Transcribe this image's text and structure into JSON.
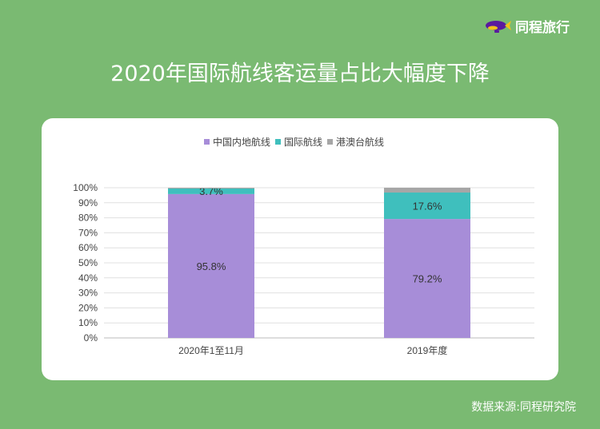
{
  "header": {
    "title": "2020年国际航线客运量占比大幅度下降",
    "brand": "同程旅行"
  },
  "footer": {
    "source": "数据来源:同程研究院"
  },
  "colors": {
    "background": "#7aba72",
    "series": [
      "#a78dd8",
      "#3fbfbd",
      "#a6a6a6"
    ]
  },
  "chart_data": {
    "type": "bar",
    "stacked": true,
    "categories": [
      "2020年1至11月",
      "2019年度"
    ],
    "series": [
      {
        "name": "中国内地航线",
        "values": [
          95.8,
          79.2
        ],
        "labels": [
          "95.8%",
          "79.2%"
        ]
      },
      {
        "name": "国际航线",
        "values": [
          3.7,
          17.6
        ],
        "labels": [
          "3.7%",
          "17.6%"
        ]
      },
      {
        "name": "港澳台航线",
        "values": [
          0.5,
          3.2
        ],
        "labels": [
          "",
          ""
        ]
      }
    ],
    "yticks": [
      "0%",
      "10%",
      "20%",
      "30%",
      "40%",
      "50%",
      "60%",
      "70%",
      "80%",
      "90%",
      "100%"
    ],
    "ylim": [
      0,
      100
    ],
    "legend": "top",
    "grid": true
  }
}
